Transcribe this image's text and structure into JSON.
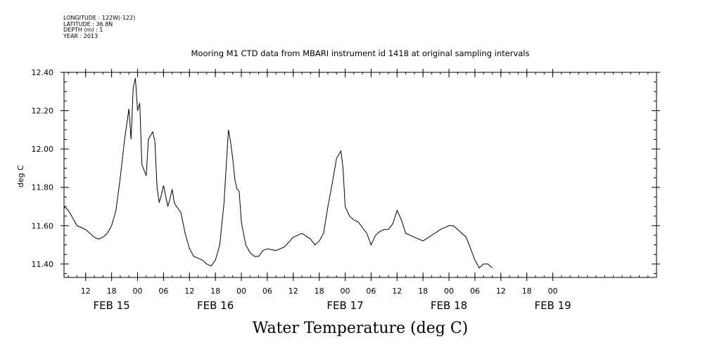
{
  "header": {
    "lines": [
      "LONGITUDE : 122W(-122)",
      "LATITUDE : 36.8N",
      "DEPTH (m) : 1",
      "YEAR : 2013"
    ]
  },
  "chart_data": {
    "type": "line",
    "title": "Mooring M1 CTD data from MBARI instrument id 1418 at original sampling intervals",
    "ylabel": "deg C",
    "xlabel": "Water Temperature (deg C)",
    "ylim": [
      11.33,
      12.4
    ],
    "yticks": [
      11.4,
      11.6,
      11.8,
      12.0,
      12.2,
      12.4
    ],
    "ytick_labels": [
      "11.40",
      "11.60",
      "11.80",
      "12.00",
      "12.20",
      "12.40"
    ],
    "xlim": [
      "2013-02-14T07:00",
      "2013-02-19T23:59"
    ],
    "xtick_labels": [
      "12",
      "18",
      "00",
      "06",
      "12",
      "18",
      "00",
      "06",
      "12",
      "18",
      "00",
      "06",
      "12",
      "18",
      "00",
      "06",
      "12",
      "18",
      "00"
    ],
    "xtick_times": [
      "2013-02-14T12:00",
      "2013-02-14T18:00",
      "2013-02-15T00:00",
      "2013-02-15T06:00",
      "2013-02-15T12:00",
      "2013-02-15T18:00",
      "2013-02-16T00:00",
      "2013-02-16T06:00",
      "2013-02-16T12:00",
      "2013-02-16T18:00",
      "2013-02-17T00:00",
      "2013-02-17T06:00",
      "2013-02-17T12:00",
      "2013-02-17T18:00",
      "2013-02-18T00:00",
      "2013-02-18T06:00",
      "2013-02-18T12:00",
      "2013-02-18T18:00",
      "2013-02-19T00:00"
    ],
    "date_labels": [
      {
        "label": "FEB 15",
        "time": "2013-02-14T18:00"
      },
      {
        "label": "FEB 16",
        "time": "2013-02-15T18:00"
      },
      {
        "label": "FEB 17",
        "time": "2013-02-17T00:00"
      },
      {
        "label": "FEB 18",
        "time": "2013-02-18T00:00"
      },
      {
        "label": "FEB 19",
        "time": "2013-02-19T00:00"
      }
    ],
    "grid": false,
    "series": [
      {
        "x": [
          "2013-02-14T07:00",
          "2013-02-14T08:00",
          "2013-02-14T09:00",
          "2013-02-14T10:00",
          "2013-02-14T11:00",
          "2013-02-14T12:00",
          "2013-02-14T13:00",
          "2013-02-14T14:00",
          "2013-02-14T15:00",
          "2013-02-14T16:00",
          "2013-02-14T17:00",
          "2013-02-14T18:00",
          "2013-02-14T19:00",
          "2013-02-14T20:00",
          "2013-02-14T21:00",
          "2013-02-14T22:00",
          "2013-02-14T22:30",
          "2013-02-14T23:00",
          "2013-02-14T23:30",
          "2013-02-15T00:00",
          "2013-02-15T00:30",
          "2013-02-15T01:00",
          "2013-02-15T02:00",
          "2013-02-15T02:30",
          "2013-02-15T03:30",
          "2013-02-15T04:00",
          "2013-02-15T04:30",
          "2013-02-15T05:00",
          "2013-02-15T05:30",
          "2013-02-15T06:00",
          "2013-02-15T07:00",
          "2013-02-15T07:30",
          "2013-02-15T08:00",
          "2013-02-15T08:30",
          "2013-02-15T09:00",
          "2013-02-15T10:00",
          "2013-02-15T11:00",
          "2013-02-15T12:00",
          "2013-02-15T13:00",
          "2013-02-15T14:00",
          "2013-02-15T15:00",
          "2013-02-15T16:00",
          "2013-02-15T17:00",
          "2013-02-15T18:00",
          "2013-02-15T19:00",
          "2013-02-15T20:00",
          "2013-02-15T21:00",
          "2013-02-15T21:30",
          "2013-02-15T22:00",
          "2013-02-15T22:30",
          "2013-02-15T23:00",
          "2013-02-15T23:30",
          "2013-02-16T00:00",
          "2013-02-16T01:00",
          "2013-02-16T02:00",
          "2013-02-16T03:00",
          "2013-02-16T04:00",
          "2013-02-16T05:00",
          "2013-02-16T06:00",
          "2013-02-16T08:00",
          "2013-02-16T10:00",
          "2013-02-16T12:00",
          "2013-02-16T14:00",
          "2013-02-16T16:00",
          "2013-02-16T17:00",
          "2013-02-16T18:00",
          "2013-02-16T19:00",
          "2013-02-16T20:00",
          "2013-02-16T21:00",
          "2013-02-16T22:00",
          "2013-02-16T23:00",
          "2013-02-16T23:30",
          "2013-02-17T00:00",
          "2013-02-17T01:00",
          "2013-02-17T02:00",
          "2013-02-17T03:00",
          "2013-02-17T04:00",
          "2013-02-17T05:00",
          "2013-02-17T06:00",
          "2013-02-17T07:00",
          "2013-02-17T08:00",
          "2013-02-17T09:00",
          "2013-02-17T10:00",
          "2013-02-17T11:00",
          "2013-02-17T12:00",
          "2013-02-17T13:00",
          "2013-02-17T14:00",
          "2013-02-17T16:00",
          "2013-02-17T18:00",
          "2013-02-17T20:00",
          "2013-02-17T22:00",
          "2013-02-18T00:00",
          "2013-02-18T01:00",
          "2013-02-18T02:00",
          "2013-02-18T04:00",
          "2013-02-18T05:00",
          "2013-02-18T06:00",
          "2013-02-18T07:00",
          "2013-02-18T08:00",
          "2013-02-18T09:00",
          "2013-02-18T10:00"
        ],
        "y": [
          11.7,
          11.68,
          11.64,
          11.6,
          11.59,
          11.58,
          11.56,
          11.54,
          11.53,
          11.54,
          11.56,
          11.6,
          11.68,
          11.85,
          12.05,
          12.21,
          12.05,
          12.32,
          12.37,
          12.2,
          12.24,
          11.92,
          11.86,
          12.05,
          12.09,
          12.04,
          11.8,
          11.72,
          11.76,
          11.81,
          11.7,
          11.74,
          11.79,
          11.72,
          11.7,
          11.67,
          11.56,
          11.48,
          11.44,
          11.43,
          11.42,
          11.4,
          11.39,
          11.42,
          11.5,
          11.72,
          12.1,
          12.04,
          11.95,
          11.84,
          11.79,
          11.78,
          11.62,
          11.5,
          11.46,
          11.44,
          11.44,
          11.47,
          11.48,
          11.47,
          11.49,
          11.54,
          11.56,
          11.53,
          11.5,
          11.52,
          11.56,
          11.7,
          11.82,
          11.95,
          11.99,
          11.9,
          11.7,
          11.65,
          11.63,
          11.62,
          11.59,
          11.56,
          11.5,
          11.55,
          11.57,
          11.58,
          11.58,
          11.61,
          11.68,
          11.63,
          11.56,
          11.54,
          11.52,
          11.55,
          11.58,
          11.6,
          11.6,
          11.58,
          11.54,
          11.48,
          11.42,
          11.38,
          11.4,
          11.4,
          11.38
        ]
      }
    ]
  }
}
